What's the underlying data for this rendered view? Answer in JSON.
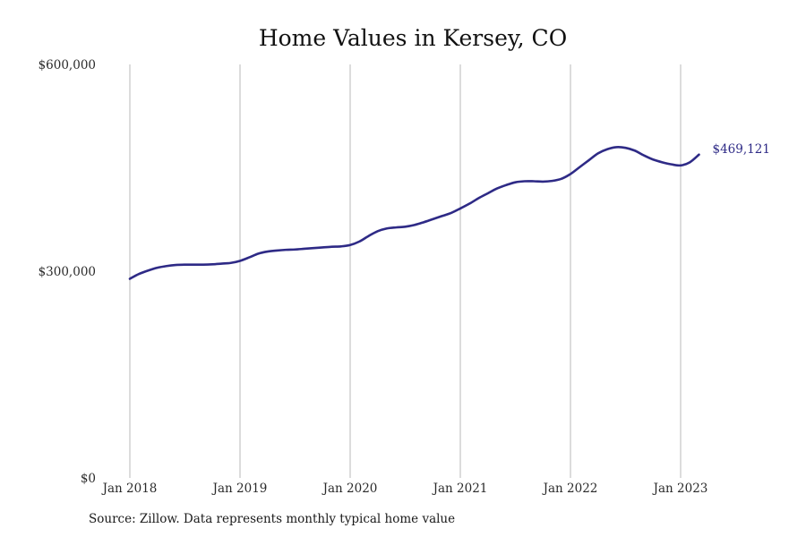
{
  "chart_data": {
    "type": "line",
    "title": "Home Values in Kersey, CO",
    "source": "Source: Zillow. Data represents monthly typical home value",
    "ylim": [
      0,
      600000
    ],
    "y_ticks": [
      {
        "value": 0,
        "label": "$0"
      },
      {
        "value": 300000,
        "label": "$300,000"
      },
      {
        "value": 600000,
        "label": "$600,000"
      }
    ],
    "x_ticks": [
      {
        "index": 0,
        "label": "Jan 2018"
      },
      {
        "index": 12,
        "label": "Jan 2019"
      },
      {
        "index": 24,
        "label": "Jan 2020"
      },
      {
        "index": 36,
        "label": "Jan 2021"
      },
      {
        "index": 48,
        "label": "Jan 2022"
      },
      {
        "index": 60,
        "label": "Jan 2023"
      }
    ],
    "grid": {
      "vertical": true,
      "horizontal": false
    },
    "colors": {
      "series": "#2e2a86",
      "grid": "#b8b8b8"
    },
    "end_label": "$469,121",
    "series": [
      {
        "x": [
          "2018-01",
          "2018-02",
          "2018-03",
          "2018-04",
          "2018-05",
          "2018-06",
          "2018-07",
          "2018-08",
          "2018-09",
          "2018-10",
          "2018-11",
          "2018-12",
          "2019-01",
          "2019-02",
          "2019-03",
          "2019-04",
          "2019-05",
          "2019-06",
          "2019-07",
          "2019-08",
          "2019-09",
          "2019-10",
          "2019-11",
          "2019-12",
          "2020-01",
          "2020-02",
          "2020-03",
          "2020-04",
          "2020-05",
          "2020-06",
          "2020-07",
          "2020-08",
          "2020-09",
          "2020-10",
          "2020-11",
          "2020-12",
          "2021-01",
          "2021-02",
          "2021-03",
          "2021-04",
          "2021-05",
          "2021-06",
          "2021-07",
          "2021-08",
          "2021-09",
          "2021-10",
          "2021-11",
          "2021-12",
          "2022-01",
          "2022-02",
          "2022-03",
          "2022-04",
          "2022-05",
          "2022-06",
          "2022-07",
          "2022-08",
          "2022-09",
          "2022-10",
          "2022-11",
          "2022-12",
          "2023-01",
          "2023-02",
          "2023-03"
        ],
        "values": [
          289000,
          296000,
          301000,
          305000,
          307500,
          309000,
          309500,
          309500,
          309500,
          310000,
          311000,
          312000,
          315000,
          320000,
          325500,
          328500,
          330000,
          331000,
          331500,
          332500,
          333500,
          334500,
          335500,
          336000,
          338000,
          343000,
          351000,
          358000,
          362000,
          363500,
          364500,
          367000,
          371000,
          375500,
          380000,
          384500,
          391000,
          398000,
          406000,
          413000,
          420000,
          425000,
          429000,
          430500,
          430500,
          430000,
          431000,
          434000,
          441000,
          451000,
          461000,
          471000,
          477000,
          480000,
          479000,
          475000,
          468000,
          462000,
          458000,
          455000,
          453500,
          458000,
          469121
        ]
      }
    ]
  }
}
